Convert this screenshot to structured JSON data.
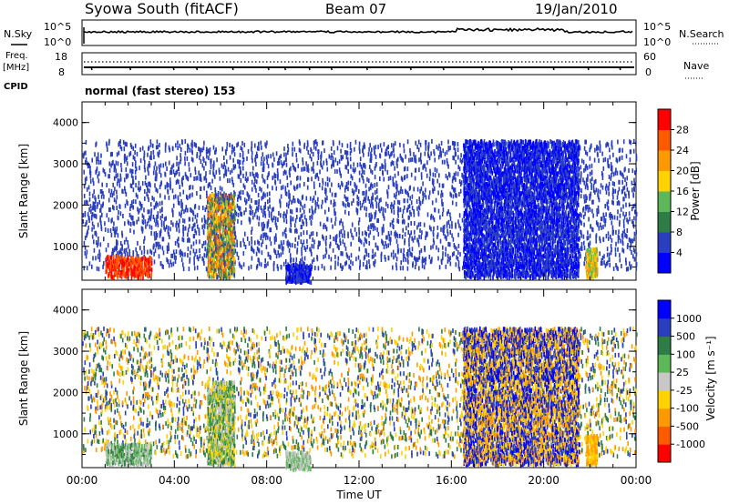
{
  "header": {
    "title": "Syowa South (fitACF)",
    "beam": "Beam 07",
    "date": "19/Jan/2010"
  },
  "status_panels": {
    "nsky_label": "N.Sky",
    "nsky_ticks": [
      "10^5",
      "10^0"
    ],
    "nsearch_label": "N.Search",
    "nsearch_ticks": [
      "10^5",
      "10^0"
    ],
    "freq_label": "Freq.",
    "freq_unit": "[MHz]",
    "freq_ticks": [
      "18",
      "8"
    ],
    "cpid_label": "CPID",
    "nave_label": "Nave",
    "nave_ticks": [
      "60",
      "0"
    ],
    "cpid_text": "normal (fast stereo) 153"
  },
  "chart_data": [
    {
      "type": "heatmap",
      "name": "power",
      "ylabel": "Slant Range [km]",
      "xlabel": "",
      "xlim": [
        0,
        24
      ],
      "ylim": [
        180,
        4500
      ],
      "yticks": [
        "4000",
        "3000",
        "2000",
        "1000"
      ],
      "colorbar_label": "Power [dB]",
      "colorbar_ticks": [
        "28",
        "24",
        "20",
        "16",
        "12",
        "8",
        "4"
      ],
      "colorbar_colors": [
        "#0000ff",
        "#2a3fc0",
        "#2e7d46",
        "#5db85a",
        "#ffd200",
        "#ff9900",
        "#ff5a00",
        "#ff0000"
      ],
      "bands": [
        {
          "x": [
            0.0,
            24.0
          ],
          "y": [
            500,
            3600
          ],
          "density": 0.08,
          "levels": [
            1
          ]
        },
        {
          "x": [
            16.5,
            21.5
          ],
          "y": [
            300,
            3600
          ],
          "density": 0.42,
          "levels": [
            0,
            1
          ]
        },
        {
          "x": [
            1.0,
            3.0
          ],
          "y": [
            300,
            800
          ],
          "density": 0.45,
          "levels": [
            6,
            7
          ]
        },
        {
          "x": [
            5.4,
            6.6
          ],
          "y": [
            300,
            2300
          ],
          "density": 0.55,
          "levels": [
            2,
            3,
            4,
            5,
            6,
            1
          ]
        },
        {
          "x": [
            8.8,
            9.9
          ],
          "y": [
            180,
            600
          ],
          "density": 0.6,
          "levels": [
            1,
            0
          ]
        },
        {
          "x": [
            21.8,
            22.3
          ],
          "y": [
            300,
            1000
          ],
          "density": 0.6,
          "levels": [
            3,
            4,
            5
          ]
        }
      ]
    },
    {
      "type": "heatmap",
      "name": "velocity",
      "ylabel": "Slant Range [km]",
      "xlabel": "Time UT",
      "xlim": [
        0,
        24
      ],
      "ylim": [
        180,
        4500
      ],
      "xticks": [
        "00:00",
        "04:00",
        "08:00",
        "12:00",
        "16:00",
        "20:00",
        "00:00"
      ],
      "yticks": [
        "4000",
        "3000",
        "2000",
        "1000"
      ],
      "colorbar_label": "Velocity [m s⁻¹]",
      "colorbar_ticks": [
        "1000",
        "500",
        "100",
        "25",
        "-25",
        "-100",
        "-500",
        "-1000"
      ],
      "colorbar_colors": [
        "#ff0000",
        "#ff5a00",
        "#ff9900",
        "#ffd200",
        "#c8c8c8",
        "#5db85a",
        "#2e7d46",
        "#2a3fc0",
        "#0000ff"
      ],
      "bands": [
        {
          "x": [
            0.0,
            24.0
          ],
          "y": [
            500,
            3600
          ],
          "density": 0.08,
          "levels": [
            2,
            3,
            6,
            7
          ]
        },
        {
          "x": [
            16.5,
            21.5
          ],
          "y": [
            300,
            3600
          ],
          "density": 0.42,
          "levels": [
            7,
            8,
            3,
            2
          ]
        },
        {
          "x": [
            1.0,
            3.0
          ],
          "y": [
            300,
            800
          ],
          "density": 0.45,
          "levels": [
            5,
            4,
            6
          ]
        },
        {
          "x": [
            5.4,
            6.6
          ],
          "y": [
            300,
            2300
          ],
          "density": 0.55,
          "levels": [
            5,
            4,
            6,
            3
          ]
        },
        {
          "x": [
            8.8,
            9.9
          ],
          "y": [
            180,
            600
          ],
          "density": 0.6,
          "levels": [
            4,
            5
          ]
        },
        {
          "x": [
            21.8,
            22.3
          ],
          "y": [
            300,
            1000
          ],
          "density": 0.6,
          "levels": [
            2,
            3
          ]
        }
      ]
    }
  ]
}
